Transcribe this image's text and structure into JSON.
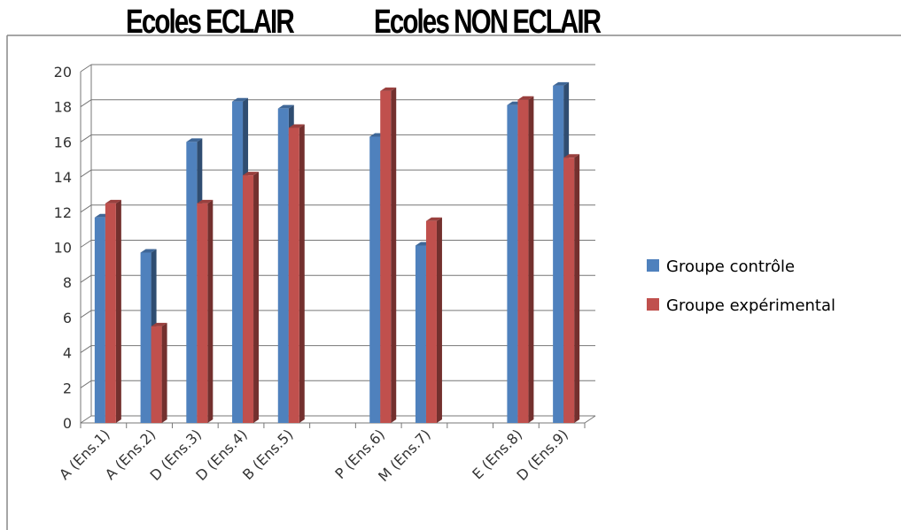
{
  "group_titles": [
    "Ecoles ECLAIR",
    "Ecoles NON ECLAIR"
  ],
  "chart_data": {
    "type": "bar",
    "categories": [
      "A (Ens.1)",
      "A (Ens.2)",
      "D (Ens.3)",
      "D (Ens.4)",
      "B (Ens.5)",
      "",
      "P (Ens.6)",
      "M (Ens.7)",
      "",
      "E (Ens.8)",
      "D (Ens.9)"
    ],
    "series": [
      {
        "name": "Groupe contrôle",
        "color": "#4F81BD",
        "values": [
          11.7,
          9.7,
          16.0,
          18.3,
          17.9,
          null,
          16.3,
          10.1,
          null,
          18.1,
          19.2
        ]
      },
      {
        "name": "Groupe expérimental",
        "color": "#C0504D",
        "values": [
          12.5,
          5.5,
          12.5,
          14.1,
          16.8,
          null,
          18.9,
          11.5,
          null,
          18.4,
          15.1
        ]
      }
    ],
    "ylim": [
      0,
      20
    ],
    "yticks": [
      0,
      2,
      4,
      6,
      8,
      10,
      12,
      14,
      16,
      18,
      20
    ],
    "grid": true,
    "legend_position": "right",
    "three_d": true
  }
}
